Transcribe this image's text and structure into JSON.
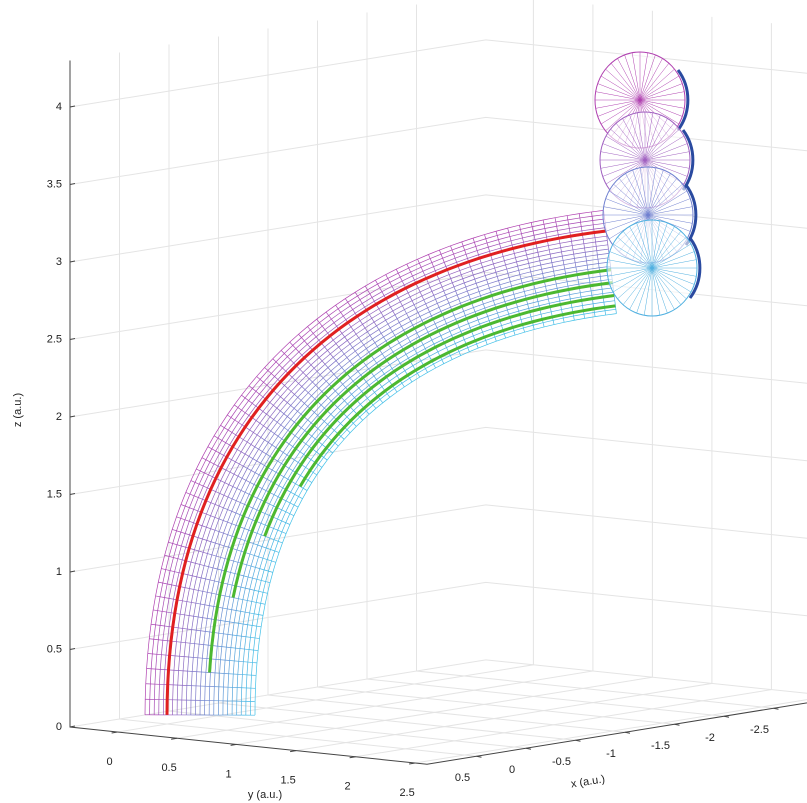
{
  "chart_data": {
    "type": "surface3d",
    "xlabel": "x (a.u.)",
    "ylabel": "y (a.u.)",
    "zlabel": "z (a.u.)",
    "xlim": [
      -3.2,
      1
    ],
    "ylim": [
      -0.4,
      2.6
    ],
    "zlim": [
      0,
      4.3
    ],
    "xticks": [
      -2.5,
      -2,
      -1.5,
      -1,
      -0.5,
      0,
      0.5
    ],
    "yticks": [
      0,
      0.5,
      1,
      1.5,
      2,
      2.5
    ],
    "zticks": [
      0,
      0.5,
      1,
      1.5,
      2,
      2.5,
      3,
      3.5,
      4
    ],
    "grid": true
  }
}
